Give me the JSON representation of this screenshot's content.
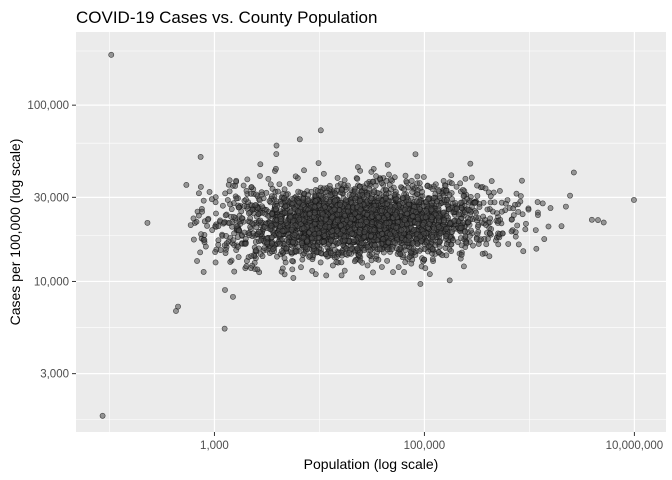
{
  "chart_data": {
    "type": "scatter",
    "title": "COVID-19 Cases vs. County Population",
    "xlabel": "Population (log scale)",
    "ylabel": "Cases per 100,000 (log scale)",
    "x_scale": "log10",
    "y_scale": "log10",
    "xlim": [
      48,
      20000000
    ],
    "ylim": [
      1400,
      260000
    ],
    "x_ticks": [
      {
        "value": 1000,
        "label": "1,000"
      },
      {
        "value": 100000,
        "label": "100,000"
      },
      {
        "value": 10000000,
        "label": "10,000,000"
      }
    ],
    "y_ticks": [
      {
        "value": 3000,
        "label": "3,000"
      },
      {
        "value": 10000,
        "label": "10,000"
      },
      {
        "value": 30000,
        "label": "30,000"
      },
      {
        "value": 100000,
        "label": "100,000"
      }
    ],
    "grid": true,
    "legend": "none",
    "point_count_estimate": 3100,
    "highlight_points": [
      {
        "x": 86,
        "y": 1730
      },
      {
        "x": 104,
        "y": 193000
      },
      {
        "x": 230,
        "y": 21500
      },
      {
        "x": 430,
        "y": 6800
      },
      {
        "x": 450,
        "y": 7200
      },
      {
        "x": 1250,
        "y": 5400
      },
      {
        "x": 540,
        "y": 35300
      },
      {
        "x": 9900000,
        "y": 29000
      },
      {
        "x": 2650000,
        "y": 41500
      },
      {
        "x": 4500000,
        "y": 22300
      },
      {
        "x": 5100000,
        "y": 21600
      },
      {
        "x": 10300,
        "y": 72000
      },
      {
        "x": 6500,
        "y": 64000
      },
      {
        "x": 3900,
        "y": 59000
      }
    ]
  },
  "style": {
    "panel_bg": "#ebebeb",
    "grid_major": "#ffffff",
    "point_fill": "#4d4d4d",
    "point_stroke": "#111111",
    "axis_text": "#4d4d4d",
    "title_color": "#000000"
  }
}
